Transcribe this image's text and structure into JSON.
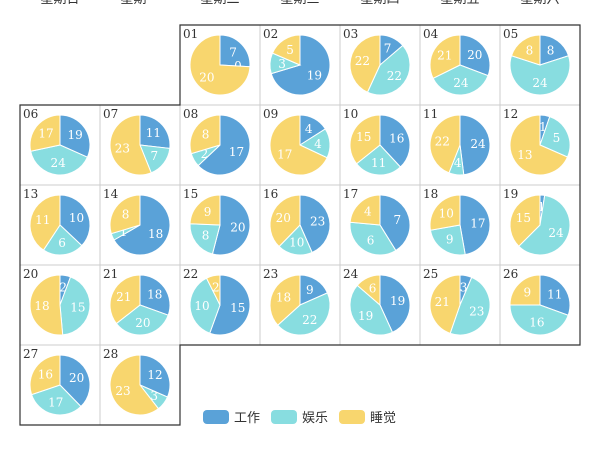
{
  "colors": {
    "work": "#5aa2d8",
    "fun": "#88dde0",
    "sleep": "#f8d66e",
    "grid": "#cccccc",
    "outline": "#333333"
  },
  "weekdays": [
    "星期日",
    "星期一",
    "星期二",
    "星期三",
    "星期四",
    "星期五",
    "星期六"
  ],
  "legend": [
    "工作",
    "娱乐",
    "睡觉"
  ],
  "chart_data": {
    "type": "pie",
    "calendar_layout": "month-calendar",
    "first_weekday_column": 2,
    "series_names": [
      "工作",
      "娱乐",
      "睡觉"
    ],
    "days": [
      {
        "day": "01",
        "values": [
          7,
          0,
          20
        ]
      },
      {
        "day": "02",
        "values": [
          19,
          3,
          5
        ]
      },
      {
        "day": "03",
        "values": [
          7,
          22,
          22
        ]
      },
      {
        "day": "04",
        "values": [
          20,
          24,
          21
        ]
      },
      {
        "day": "05",
        "values": [
          8,
          24,
          8
        ]
      },
      {
        "day": "06",
        "values": [
          19,
          24,
          17
        ]
      },
      {
        "day": "07",
        "values": [
          11,
          7,
          23
        ]
      },
      {
        "day": "08",
        "values": [
          17,
          2,
          8
        ]
      },
      {
        "day": "09",
        "values": [
          4,
          4,
          17
        ]
      },
      {
        "day": "10",
        "values": [
          16,
          11,
          15
        ]
      },
      {
        "day": "11",
        "values": [
          24,
          4,
          22
        ]
      },
      {
        "day": "12",
        "values": [
          1,
          5,
          13
        ]
      },
      {
        "day": "13",
        "values": [
          10,
          6,
          11
        ]
      },
      {
        "day": "14",
        "values": [
          18,
          1,
          8
        ]
      },
      {
        "day": "15",
        "values": [
          20,
          8,
          9
        ]
      },
      {
        "day": "16",
        "values": [
          23,
          10,
          20
        ]
      },
      {
        "day": "17",
        "values": [
          7,
          6,
          4
        ]
      },
      {
        "day": "18",
        "values": [
          17,
          9,
          10
        ]
      },
      {
        "day": "19",
        "values": [
          1,
          24,
          15
        ]
      },
      {
        "day": "20",
        "values": [
          2,
          15,
          18
        ]
      },
      {
        "day": "21",
        "values": [
          18,
          20,
          21
        ]
      },
      {
        "day": "22",
        "values": [
          15,
          10,
          2
        ]
      },
      {
        "day": "23",
        "values": [
          9,
          22,
          18
        ]
      },
      {
        "day": "24",
        "values": [
          19,
          19,
          6
        ]
      },
      {
        "day": "25",
        "values": [
          3,
          23,
          21
        ]
      },
      {
        "day": "26",
        "values": [
          11,
          16,
          9
        ]
      },
      {
        "day": "27",
        "values": [
          20,
          17,
          16
        ]
      },
      {
        "day": "28",
        "values": [
          12,
          3,
          23
        ]
      }
    ]
  }
}
